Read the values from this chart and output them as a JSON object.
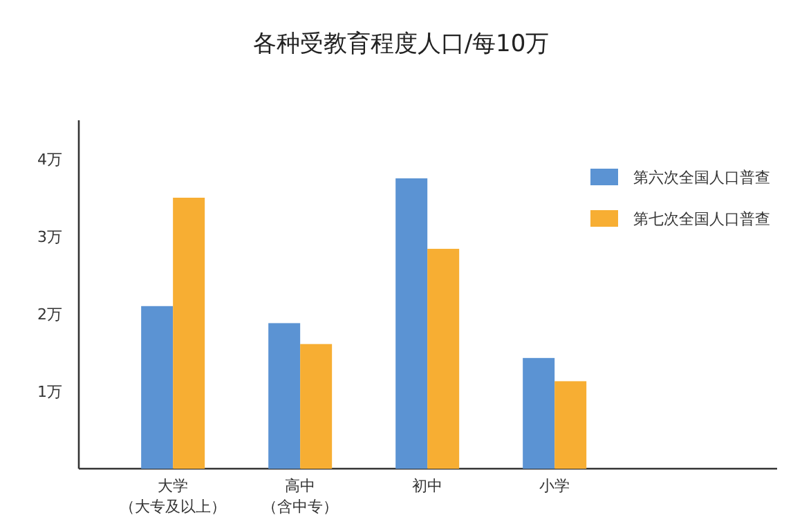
{
  "chart_data": {
    "type": "bar",
    "title": "各种受教育程度人口/每10万",
    "categories": [
      "大学（大专及以上）",
      "高中（含中专）",
      "初中",
      "小学"
    ],
    "series": [
      {
        "name": "第六次全国人口普查",
        "color": "#5b93d3",
        "values": [
          2.1,
          1.88,
          3.75,
          1.43
        ]
      },
      {
        "name": "第七次全国人口普查",
        "color": "#f7ae33",
        "values": [
          3.5,
          1.61,
          2.84,
          1.13
        ]
      }
    ],
    "ylim": [
      0,
      4.5
    ],
    "yticks": [
      {
        "value": 1,
        "label": "1万"
      },
      {
        "value": 2,
        "label": "2万"
      },
      {
        "value": 3,
        "label": "3万"
      },
      {
        "value": 4,
        "label": "4万"
      }
    ],
    "legend": "top right"
  }
}
